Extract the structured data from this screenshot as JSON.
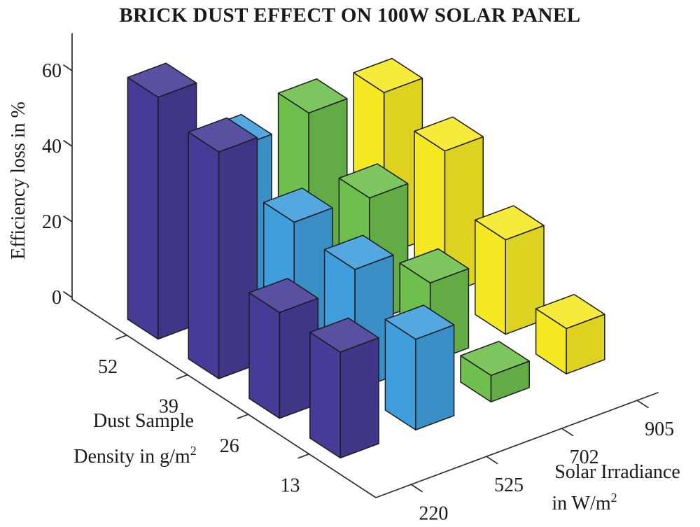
{
  "chart_data": {
    "type": "bar",
    "subtype": "bar3d",
    "title": "BRICK DUST EFFECT ON 100W SOLAR PANEL",
    "zlabel": "Efficiency loss in %",
    "z_ticks": [
      0,
      20,
      40,
      60
    ],
    "zlim": [
      0,
      70
    ],
    "grid": false,
    "legend": "none",
    "dust_axis": {
      "label": [
        "Dust Sample",
        "Density in g/m"
      ],
      "superscript": "2",
      "ticks": [
        "52",
        "39",
        "26",
        "13"
      ]
    },
    "irradiance_axis": {
      "label": [
        "Solar Irradiance",
        "in W/m"
      ],
      "superscript": "2",
      "ticks": [
        "220",
        "525",
        "702",
        "905"
      ]
    },
    "series": [
      {
        "name": "220 W/m2",
        "color": "#463C97",
        "values": [
          64,
          60,
          28,
          28
        ]
      },
      {
        "name": "525 W/m2",
        "color": "#3F9EDB",
        "values": [
          43,
          34,
          32,
          24
        ]
      },
      {
        "name": "702 W/m2",
        "color": "#6EBF4D",
        "values": [
          45,
          33,
          21,
          7
        ]
      },
      {
        "name": "905 W/m2",
        "color": "#F5E924",
        "values": [
          43,
          38,
          25,
          12
        ]
      }
    ],
    "series_note": "values ordered by dust density ticks 52, 39, 26, 13 g/m2",
    "colors": {
      "edge": "#1b1b1b",
      "axis": "#2b2b2b",
      "background": "#ffffff"
    }
  }
}
